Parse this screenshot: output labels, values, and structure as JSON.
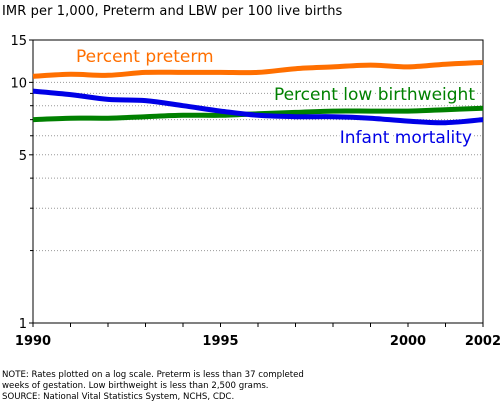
{
  "chart_data": {
    "type": "line",
    "title": "IMR per 1,000, Preterm and LBW per 100 live births",
    "x": [
      1990,
      1991,
      1992,
      1993,
      1994,
      1995,
      1996,
      1997,
      1998,
      1999,
      2000,
      2001,
      2002
    ],
    "x_ticks": [
      1990,
      1995,
      2000,
      2002
    ],
    "x_tick_labels": [
      "1990",
      "1995",
      "2000",
      "2002"
    ],
    "xlim": [
      1990,
      2002
    ],
    "y_scale": "log",
    "ylim": [
      1,
      15
    ],
    "y_ticks": [
      1,
      5,
      10,
      15
    ],
    "y_tick_labels": [
      "1",
      "5",
      "10",
      "15"
    ],
    "y_minor_ticks": [
      2,
      3,
      4,
      6,
      7,
      8,
      9
    ],
    "grid": "horizontal",
    "series": [
      {
        "name": "Percent preterm",
        "color": "#ff6f00",
        "values": [
          10.6,
          10.8,
          10.7,
          11.0,
          11.0,
          11.0,
          11.0,
          11.4,
          11.6,
          11.8,
          11.6,
          11.9,
          12.1
        ]
      },
      {
        "name": "Percent low birthweight",
        "color": "#008000",
        "values": [
          7.0,
          7.1,
          7.1,
          7.2,
          7.3,
          7.3,
          7.4,
          7.5,
          7.6,
          7.6,
          7.6,
          7.7,
          7.8
        ]
      },
      {
        "name": "Infant mortality",
        "color": "#0000e6",
        "values": [
          9.2,
          8.9,
          8.5,
          8.4,
          8.0,
          7.6,
          7.3,
          7.2,
          7.2,
          7.1,
          6.9,
          6.8,
          7.0
        ]
      }
    ]
  },
  "notes": [
    "NOTE: Rates plotted on a log scale.  Preterm is less than 37 completed",
    "weeks of gestation.  Low birthweight is less than 2,500 grams.",
    "SOURCE: National Vital Statistics System, NCHS, CDC."
  ]
}
